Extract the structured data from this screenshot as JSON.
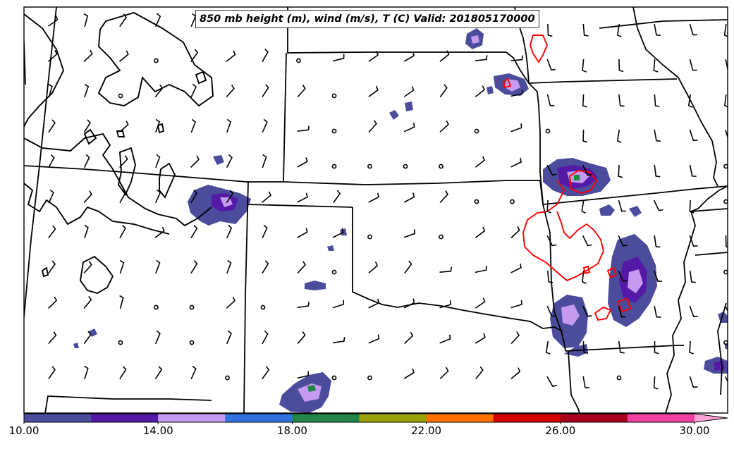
{
  "map": {
    "title": "850 mb height (m), wind (m/s), T (C) Valid: 201805170000",
    "colors": {
      "state_border": "#000000",
      "height_contour": "#000000",
      "temperature_contour": "#ff0000",
      "wind_barb": "#000000"
    }
  },
  "colorbar": {
    "min": 10,
    "max": 32,
    "ticks": [
      "10.00",
      "14.00",
      "18.00",
      "22.00",
      "26.00",
      "30.00"
    ],
    "tick_values": [
      10,
      14,
      18,
      22,
      26,
      30
    ],
    "bins": [
      {
        "from": 10,
        "to": 12,
        "color": "#4b4c9b"
      },
      {
        "from": 12,
        "to": 14,
        "color": "#5419a6"
      },
      {
        "from": 14,
        "to": 16,
        "color": "#c59af0"
      },
      {
        "from": 16,
        "to": 18,
        "color": "#3072df"
      },
      {
        "from": 18,
        "to": 20,
        "color": "#218546"
      },
      {
        "from": 20,
        "to": 22,
        "color": "#9aa20b"
      },
      {
        "from": 22,
        "to": 24,
        "color": "#ff7200"
      },
      {
        "from": 24,
        "to": 26,
        "color": "#d60000"
      },
      {
        "from": 26,
        "to": 28,
        "color": "#a8001c"
      },
      {
        "from": 28,
        "to": 30,
        "color": "#f040a4"
      },
      {
        "from": 30,
        "to": 32,
        "color": "#ffa2d8"
      }
    ]
  }
}
